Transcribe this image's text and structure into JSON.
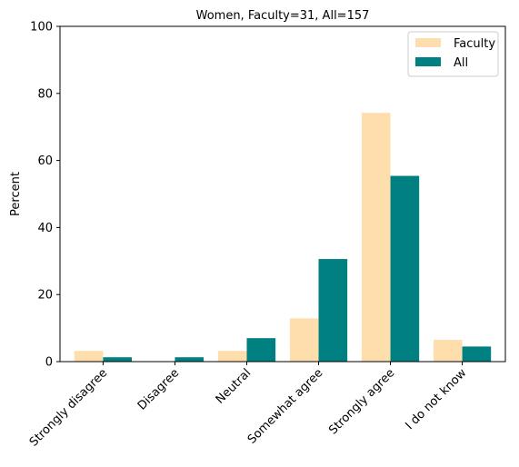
{
  "chart_data": {
    "type": "bar",
    "title": "Women, Faculty=31, All=157",
    "xlabel": "",
    "ylabel": "Percent",
    "categories": [
      "Strongly disagree",
      "Disagree",
      "Neutral",
      "Somewhat agree",
      "Strongly agree",
      "I do not know"
    ],
    "series": [
      {
        "name": "Faculty",
        "color": "#ffdead",
        "values": [
          3.2,
          0.0,
          3.2,
          12.9,
          74.2,
          6.5
        ]
      },
      {
        "name": "All",
        "color": "#008080",
        "values": [
          1.3,
          1.3,
          7.0,
          30.6,
          55.4,
          4.5
        ]
      }
    ],
    "ylim": [
      0,
      100
    ],
    "yticks": [
      0,
      20,
      40,
      60,
      80,
      100
    ],
    "grid": false,
    "legend_position": "top-right"
  }
}
